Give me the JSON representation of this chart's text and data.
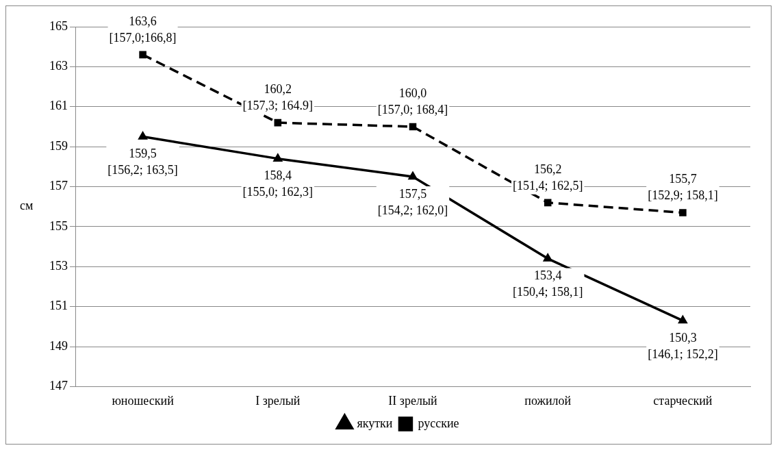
{
  "chart_data": {
    "type": "line",
    "ylabel": "см",
    "categories": [
      "юношеский",
      "I зрелый",
      "II зрелый",
      "пожилой",
      "старческий"
    ],
    "series": [
      {
        "name": "якутки",
        "color": "#000000",
        "marker": "triangle",
        "line_style": "solid",
        "values": [
          159.5,
          158.4,
          157.5,
          153.4,
          150.3
        ],
        "value_labels": [
          "159,5\n[156,2; 163,5]",
          "158,4\n[155,0; 162,3]",
          "157,5\n[154,2; 162,0]",
          "153,4\n[150,4; 158,1]",
          "150,3\n[146,1; 152,2]"
        ]
      },
      {
        "name": "русские",
        "color": "#000000",
        "marker": "square",
        "line_style": "dashed",
        "values": [
          163.6,
          160.2,
          160.0,
          156.2,
          155.7
        ],
        "value_labels": [
          "163,6\n[157,0;166,8]",
          "160,2\n[157,3; 164.9]",
          "160,0\n[157,0; 168,4]",
          "156,2\n[151,4; 162,5]",
          "155,7\n[152,9; 158,1]"
        ]
      }
    ],
    "ylim": [
      147,
      165
    ],
    "yticks": [
      147,
      149,
      151,
      153,
      155,
      157,
      159,
      161,
      163,
      165
    ],
    "grid": "y",
    "legend": "bottom"
  }
}
